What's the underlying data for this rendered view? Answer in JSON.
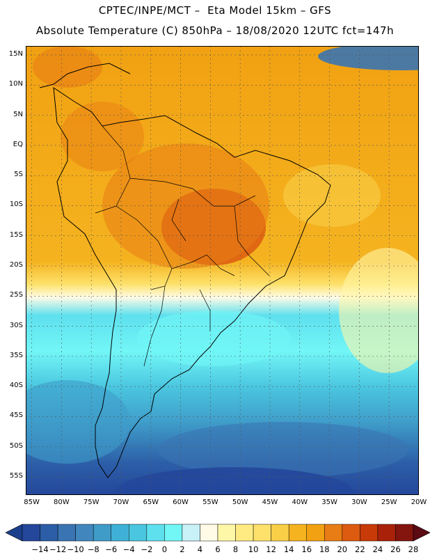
{
  "header": {
    "line1": "CPTEC/INPE/MCT –  Eta Model 15km – GFS",
    "line2": "Absolute Temperature (C) 850hPa – 18/08/2020 12UTC fct=147h"
  },
  "map": {
    "lat_ticks": [
      "15N",
      "10N",
      "5N",
      "EQ",
      "5S",
      "10S",
      "15S",
      "20S",
      "25S",
      "30S",
      "35S",
      "40S",
      "45S",
      "50S",
      "55S"
    ],
    "lon_ticks": [
      "85W",
      "80W",
      "75W",
      "70W",
      "65W",
      "60W",
      "55W",
      "50W",
      "45W",
      "40W",
      "35W",
      "30W",
      "25W",
      "20W"
    ],
    "lat_range": [
      -58,
      16.5
    ],
    "lon_range": [
      -86,
      -20
    ]
  },
  "colorbar": {
    "labels": [
      "-14",
      "-12",
      "-10",
      "-8",
      "-6",
      "-4",
      "-2",
      "0",
      "2",
      "4",
      "6",
      "8",
      "10",
      "12",
      "14",
      "16",
      "18",
      "20",
      "22",
      "24",
      "26",
      "28"
    ],
    "under_color": "#1b3f8c",
    "over_color": "#5c0a14",
    "colors": [
      "#24479b",
      "#2c5ea8",
      "#3a74b3",
      "#4187bd",
      "#3f9cc9",
      "#3fb1d6",
      "#4ac6e0",
      "#5ee0ee",
      "#72f6f6",
      "#c8f1f8",
      "#fffbe6",
      "#fff7a8",
      "#ffeb82",
      "#fde16a",
      "#f9cf47",
      "#f5b320",
      "#f1a112",
      "#e77d14",
      "#dc5b10",
      "#c83a08",
      "#a92108",
      "#84150e"
    ]
  }
}
